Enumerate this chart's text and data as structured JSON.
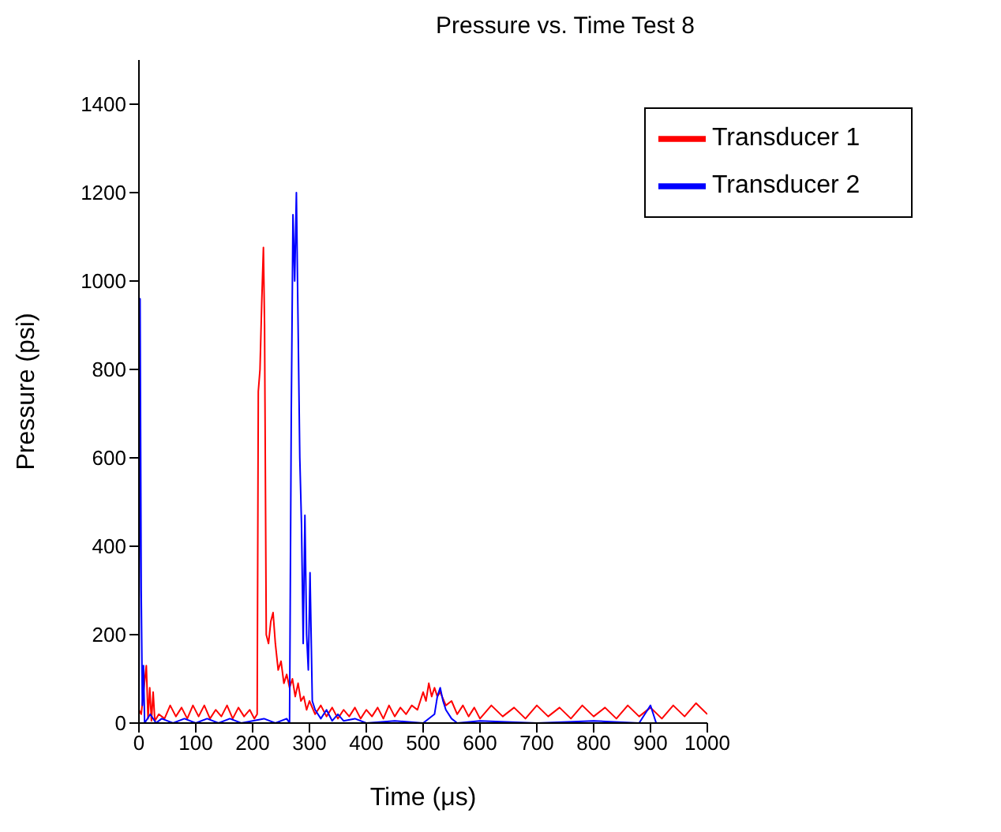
{
  "chart_data": {
    "type": "line",
    "title": "Pressure vs. Time Test 8",
    "xlabel": "Time (μs)",
    "ylabel": "Pressure (psi)",
    "xlim": [
      0,
      1000
    ],
    "ylim": [
      0,
      1500
    ],
    "xticks": [
      0,
      100,
      200,
      300,
      400,
      500,
      600,
      700,
      800,
      900,
      1000
    ],
    "yticks": [
      0,
      200,
      400,
      600,
      800,
      1000,
      1200,
      1400
    ],
    "legend": "top right",
    "grid": false,
    "marker": "none",
    "line_style": "solid",
    "series": [
      {
        "name": "Transducer 1",
        "color": "#ff0000",
        "x": [
          0,
          4,
          13,
          16,
          19,
          22,
          25,
          28,
          35,
          45,
          55,
          65,
          75,
          85,
          95,
          105,
          115,
          125,
          135,
          145,
          155,
          165,
          175,
          185,
          195,
          203,
          208,
          210,
          213,
          216,
          219,
          221,
          224,
          228,
          232,
          236,
          240,
          245,
          250,
          255,
          260,
          265,
          270,
          275,
          280,
          285,
          290,
          295,
          300,
          310,
          320,
          330,
          340,
          350,
          360,
          370,
          380,
          390,
          400,
          410,
          420,
          430,
          440,
          450,
          460,
          470,
          480,
          490,
          500,
          505,
          510,
          515,
          520,
          525,
          530,
          540,
          550,
          560,
          570,
          580,
          590,
          600,
          620,
          640,
          660,
          680,
          700,
          720,
          740,
          760,
          780,
          800,
          820,
          840,
          860,
          880,
          900,
          920,
          940,
          960,
          980,
          1000
        ],
        "values": [
          30,
          20,
          130,
          10,
          80,
          5,
          70,
          5,
          20,
          10,
          40,
          15,
          35,
          10,
          40,
          15,
          40,
          10,
          30,
          15,
          40,
          10,
          35,
          15,
          30,
          10,
          20,
          750,
          800,
          950,
          1076,
          900,
          200,
          180,
          230,
          250,
          180,
          120,
          140,
          90,
          110,
          80,
          100,
          60,
          90,
          50,
          60,
          30,
          50,
          20,
          40,
          15,
          35,
          10,
          30,
          15,
          35,
          10,
          30,
          15,
          35,
          10,
          40,
          15,
          35,
          20,
          40,
          30,
          70,
          50,
          90,
          60,
          80,
          60,
          70,
          40,
          50,
          20,
          40,
          15,
          35,
          10,
          40,
          15,
          35,
          10,
          40,
          15,
          35,
          10,
          40,
          15,
          35,
          10,
          40,
          15,
          35,
          10,
          40,
          15,
          45,
          20
        ]
      },
      {
        "name": "Transducer 2",
        "color": "#0000ff",
        "x": [
          0,
          2,
          4,
          6,
          8,
          10,
          20,
          30,
          40,
          60,
          80,
          100,
          120,
          140,
          160,
          180,
          200,
          220,
          240,
          260,
          265,
          268,
          271,
          274,
          277,
          280,
          283,
          286,
          289,
          292,
          295,
          298,
          301,
          305,
          310,
          320,
          330,
          340,
          350,
          360,
          380,
          400,
          450,
          500,
          520,
          525,
          530,
          535,
          540,
          550,
          560,
          600,
          700,
          800,
          880,
          890,
          900,
          905,
          910,
          1000
        ],
        "values": [
          0,
          960,
          300,
          40,
          130,
          0,
          20,
          0,
          10,
          0,
          10,
          0,
          10,
          0,
          10,
          0,
          5,
          10,
          0,
          10,
          0,
          700,
          1150,
          1000,
          1200,
          900,
          600,
          450,
          180,
          470,
          200,
          120,
          340,
          50,
          30,
          10,
          30,
          5,
          20,
          5,
          10,
          0,
          5,
          0,
          20,
          60,
          80,
          50,
          30,
          10,
          0,
          5,
          0,
          5,
          0,
          20,
          40,
          20,
          0,
          0
        ]
      }
    ]
  }
}
